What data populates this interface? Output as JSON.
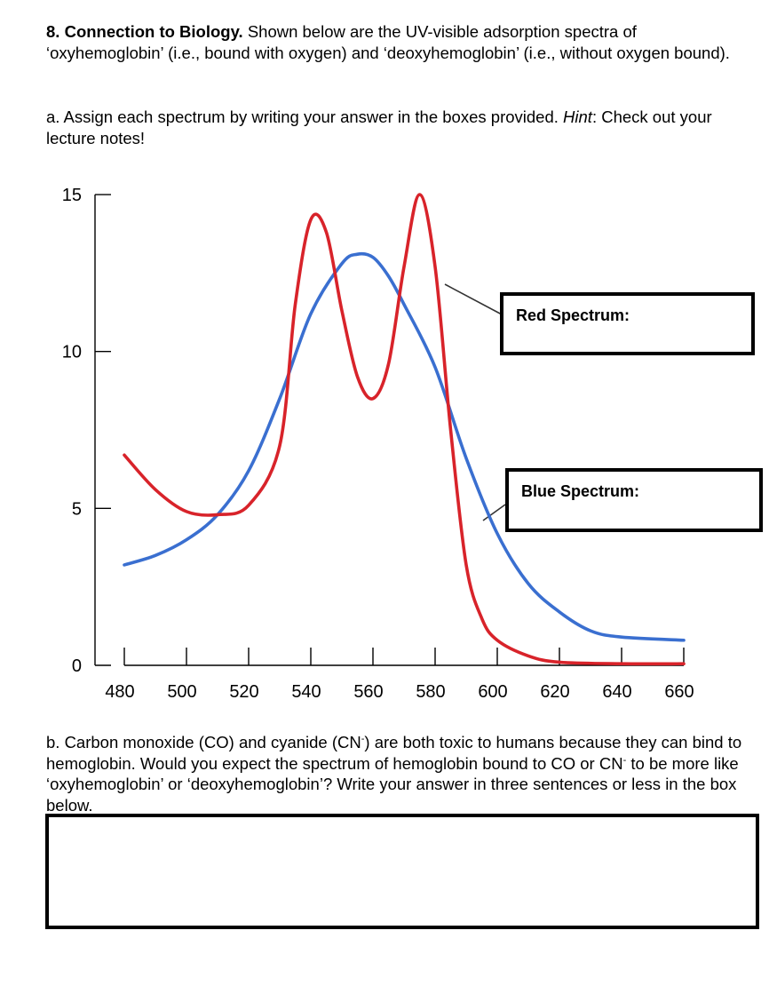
{
  "question8": {
    "number": "8.",
    "title": "Connection to Biology.",
    "text": "Shown below are the UV-visible adsorption spectra of ‘oxyhemoglobin’ (i.e., bound with oxygen) and ‘deoxyhemoglobin’ (i.e., without oxygen bound)."
  },
  "part_a": {
    "text": "a. Assign each spectrum by writing your answer in the boxes provided.",
    "hint_label": "Hint",
    "hint_text": ": Check out your lecture notes!"
  },
  "boxes": {
    "red_label": "Red Spectrum:",
    "blue_label": "Blue Spectrum:"
  },
  "part_b": {
    "text_1": "b. Carbon monoxide (CO) and cyanide (CN",
    "sup_1": "-",
    "text_2": ") are both toxic to humans because they can bind to hemoglobin. Would you expect the spectrum of hemoglobin bound to CO or CN",
    "sup_2": "-",
    "text_3": " to be more like ‘oxyhemoglobin’ or ‘deoxyhemoglobin’? Write your answer in three sentences or less in the box below."
  },
  "colors": {
    "red_series": "#d8232a",
    "blue_series": "#3a6fd0"
  },
  "chart_data": {
    "type": "line",
    "title": "",
    "xlabel": "",
    "ylabel": "",
    "xlim": [
      470,
      660
    ],
    "ylim": [
      0,
      15
    ],
    "x_ticks": [
      480,
      500,
      520,
      540,
      560,
      580,
      600,
      620,
      640,
      660
    ],
    "y_ticks": [
      0,
      5,
      10,
      15
    ],
    "grid": false,
    "series": [
      {
        "color": "red",
        "x": [
          480,
          490,
          500,
          510,
          520,
          530,
          535,
          540,
          545,
          550,
          555,
          560,
          565,
          570,
          575,
          580,
          585,
          590,
          595,
          600,
          610,
          620,
          640,
          660
        ],
        "y": [
          6.7,
          5.6,
          4.9,
          4.8,
          5.1,
          7.0,
          11.5,
          14.2,
          13.8,
          11.3,
          9.2,
          8.5,
          9.6,
          12.7,
          15.0,
          12.7,
          7.5,
          3.2,
          1.5,
          0.8,
          0.3,
          0.1,
          0.05,
          0.05
        ]
      },
      {
        "color": "blue",
        "x": [
          480,
          490,
          500,
          510,
          520,
          530,
          540,
          550,
          555,
          560,
          565,
          570,
          580,
          590,
          600,
          610,
          620,
          630,
          640,
          660
        ],
        "y": [
          3.2,
          3.5,
          4.0,
          4.8,
          6.2,
          8.5,
          11.2,
          12.8,
          13.1,
          13.0,
          12.4,
          11.5,
          9.5,
          6.6,
          4.2,
          2.6,
          1.7,
          1.1,
          0.9,
          0.8
        ]
      }
    ]
  }
}
